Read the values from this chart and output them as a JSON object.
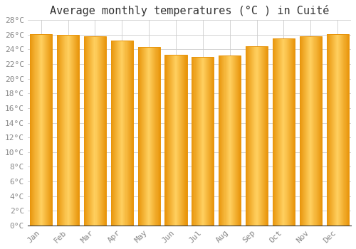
{
  "title": "Average monthly temperatures (°C ) in Cuité",
  "months": [
    "Jan",
    "Feb",
    "Mar",
    "Apr",
    "May",
    "Jun",
    "Jul",
    "Aug",
    "Sep",
    "Oct",
    "Nov",
    "Dec"
  ],
  "values": [
    26.1,
    26.0,
    25.8,
    25.2,
    24.3,
    23.3,
    23.0,
    23.2,
    24.4,
    25.5,
    25.8,
    26.1
  ],
  "bar_edge_color": "#E8940A",
  "bar_center_color": "#FFD060",
  "background_color": "#FFFFFF",
  "grid_color": "#CCCCCC",
  "ylim": [
    0,
    28
  ],
  "yticks": [
    0,
    2,
    4,
    6,
    8,
    10,
    12,
    14,
    16,
    18,
    20,
    22,
    24,
    26,
    28
  ],
  "title_fontsize": 11,
  "tick_fontsize": 8,
  "bar_width": 0.82
}
